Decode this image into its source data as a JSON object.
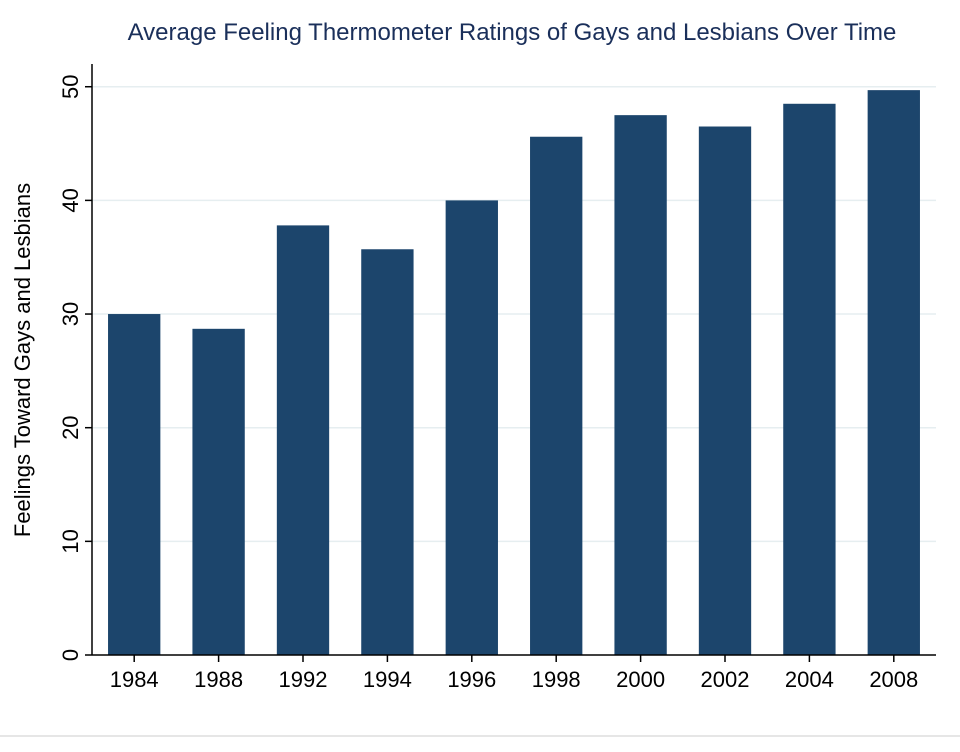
{
  "chart_data": {
    "type": "bar",
    "title": "Average Feeling Thermometer Ratings of Gays and Lesbians Over Time",
    "xlabel": "",
    "ylabel": "Feelings Toward Gays and Lesbians",
    "categories": [
      "1984",
      "1988",
      "1992",
      "1994",
      "1996",
      "1998",
      "2000",
      "2002",
      "2004",
      "2008"
    ],
    "values": [
      30.0,
      28.7,
      37.8,
      35.7,
      40.0,
      45.6,
      47.5,
      46.5,
      48.5,
      49.7
    ],
    "ylim": [
      0,
      52
    ],
    "yticks": [
      0,
      10,
      20,
      30,
      40,
      50
    ],
    "grid": true,
    "legend": "none",
    "colors": {
      "bar": "#1c456c",
      "grid": "#e6eef0",
      "title": "#1a2f5a",
      "axis": "#000000"
    }
  }
}
